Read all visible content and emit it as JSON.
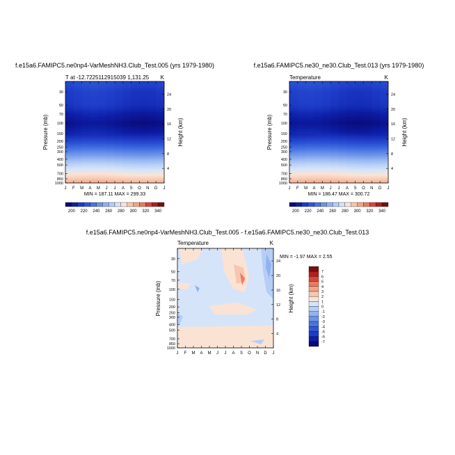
{
  "chart_data": [
    {
      "type": "heatmap",
      "title": "f.e15a6.FAMIPC5.ne0np4-VarMeshNH3.Club_Test.005 (yrs 1979-1980)",
      "subtitle_left": "T at -12.7225112915039 1,131.25",
      "subtitle_right": "K",
      "xlabel": "",
      "ylabel": "Pressure (mb)",
      "ylabel_right": "Height (km)",
      "x": [
        "J",
        "F",
        "M",
        "A",
        "M",
        "J",
        "J",
        "A",
        "S",
        "O",
        "N",
        "D",
        "J"
      ],
      "y_ticks": [
        "30",
        "50",
        "70",
        "100",
        "150",
        "200",
        "250",
        "300",
        "400",
        "500",
        "700",
        "850",
        "1000"
      ],
      "y_values": [
        30,
        50,
        70,
        100,
        150,
        200,
        250,
        300,
        400,
        500,
        700,
        850,
        1000
      ],
      "y_right_ticks": [
        "24",
        "20",
        "16",
        "12",
        "8",
        "4"
      ],
      "y_right_values": [
        24,
        20,
        16,
        12,
        8,
        4
      ],
      "ylim": [
        1000,
        20
      ],
      "log_y": true,
      "levels": [
        200,
        210,
        220,
        230,
        240,
        250,
        260,
        270,
        280,
        290,
        300,
        310,
        320,
        330,
        340
      ],
      "level_labels": [
        "200",
        "220",
        "240",
        "260",
        "280",
        "300",
        "320",
        "340"
      ],
      "minmax_text": "MIN = 187.11  MAX = 299.33",
      "min": 187.11,
      "max": 299.33
    },
    {
      "type": "heatmap",
      "title": "f.e15a6.FAMIPC5.ne30_ne30.Club_Test.013 (yrs 1979-1980)",
      "subtitle_left": "Temperature",
      "subtitle_right": "K",
      "xlabel": "",
      "ylabel": "Pressure (mb)",
      "ylabel_right": "Height (km)",
      "x": [
        "J",
        "F",
        "M",
        "A",
        "M",
        "J",
        "J",
        "A",
        "S",
        "O",
        "N",
        "D",
        "J"
      ],
      "y_ticks": [
        "30",
        "50",
        "70",
        "100",
        "150",
        "200",
        "250",
        "300",
        "400",
        "500",
        "700",
        "850",
        "1000"
      ],
      "y_values": [
        30,
        50,
        70,
        100,
        150,
        200,
        250,
        300,
        400,
        500,
        700,
        850,
        1000
      ],
      "y_right_ticks": [
        "24",
        "20",
        "16",
        "12",
        "8",
        "4"
      ],
      "y_right_values": [
        24,
        20,
        16,
        12,
        8,
        4
      ],
      "ylim": [
        1000,
        20
      ],
      "log_y": true,
      "levels": [
        200,
        210,
        220,
        230,
        240,
        250,
        260,
        270,
        280,
        290,
        300,
        310,
        320,
        330,
        340
      ],
      "level_labels": [
        "200",
        "220",
        "240",
        "260",
        "280",
        "300",
        "320",
        "340"
      ],
      "minmax_text": "MIN = 186.47  MAX = 300.72",
      "min": 186.47,
      "max": 300.72
    },
    {
      "type": "heatmap",
      "title": "f.e15a6.FAMIPC5.ne0np4-VarMeshNH3.Club_Test.005 - f.e15a6.FAMIPC5.ne30_ne30.Club_Test.013",
      "subtitle_left": "Temperature",
      "subtitle_right": "K",
      "xlabel": "",
      "ylabel": "Pressure (mb)",
      "ylabel_right": "Height (km)",
      "x": [
        "J",
        "F",
        "M",
        "A",
        "M",
        "J",
        "J",
        "A",
        "S",
        "O",
        "N",
        "D",
        "J"
      ],
      "y_ticks": [
        "30",
        "50",
        "70",
        "100",
        "150",
        "200",
        "250",
        "300",
        "400",
        "500",
        "700",
        "850",
        "1000"
      ],
      "y_values": [
        30,
        50,
        70,
        100,
        150,
        200,
        250,
        300,
        400,
        500,
        700,
        850,
        1000
      ],
      "y_right_ticks": [
        "24",
        "20",
        "16",
        "12",
        "8",
        "4"
      ],
      "y_right_values": [
        24,
        20,
        16,
        12,
        8,
        4
      ],
      "ylim": [
        1000,
        20
      ],
      "log_y": true,
      "levels": [
        7,
        6,
        5,
        4,
        3,
        2,
        1,
        0,
        -1,
        -2,
        -3,
        -4,
        -5,
        -6,
        -7
      ],
      "level_labels": [
        "7",
        "6",
        "5",
        "4",
        "3",
        "2",
        "1",
        "0",
        "-1",
        "-2",
        "-3",
        "-4",
        "-5",
        "-6",
        "-7"
      ],
      "minmax_text": "MIN = -1.97 MAX =   2.55",
      "min": -1.97,
      "max": 2.55
    }
  ],
  "colors": {
    "diverging": [
      "#0a0a7a",
      "#0d1fa8",
      "#1e3cc8",
      "#2f58d8",
      "#4a74e2",
      "#6b93ea",
      "#90b2f1",
      "#b5ceF6",
      "#d6e4fa",
      "#fbe3d4",
      "#f7c6ae",
      "#f3a486",
      "#eb7a5e",
      "#d9463a",
      "#b41e1c",
      "#7a0d0d"
    ]
  }
}
